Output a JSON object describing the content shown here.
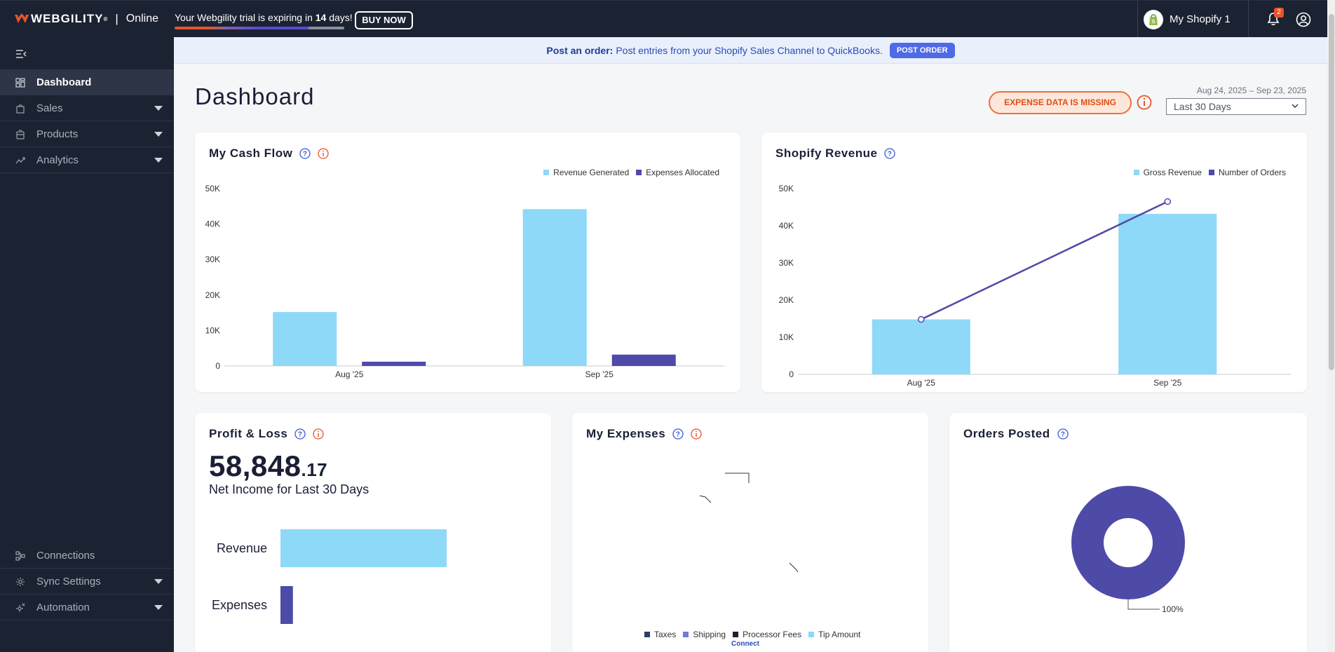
{
  "topbar": {
    "brand": "WEBGILITY",
    "brand_mark": "®",
    "separator": "|",
    "brand_sub": "Online",
    "trial_prefix": "Your Webgility trial is expiring in ",
    "trial_days": "14",
    "trial_suffix": " days!",
    "buy_label": "BUY NOW",
    "store_name": "My Shopify 1",
    "notification_count": "2"
  },
  "sidebar": {
    "items": [
      {
        "label": "Dashboard",
        "icon": "dashboard-icon",
        "active": true
      },
      {
        "label": "Sales",
        "icon": "bag-icon"
      },
      {
        "label": "Products",
        "icon": "box-icon"
      },
      {
        "label": "Analytics",
        "icon": "trend-icon"
      }
    ],
    "bottom_items": [
      {
        "label": "Connections",
        "icon": "connections-icon"
      },
      {
        "label": "Sync Settings",
        "icon": "gear-icon"
      },
      {
        "label": "Automation",
        "icon": "automation-icon"
      }
    ]
  },
  "banner": {
    "lead": "Post an order:",
    "text": "Post entries from your Shopify Sales Channel to QuickBooks.",
    "button": "POST ORDER"
  },
  "header": {
    "title": "Dashboard",
    "expense_missing": "EXPENSE DATA IS MISSING",
    "date_range": "Aug 24, 2025 – Sep 23, 2025",
    "period": "Last 30 Days"
  },
  "cards": {
    "cash_flow": {
      "title": "My Cash Flow"
    },
    "shopify_revenue": {
      "title": "Shopify Revenue"
    },
    "profit_loss": {
      "title": "Profit & Loss",
      "value_int": "58,848",
      "value_dec": ".17",
      "subtitle": "Net Income for Last 30 Days"
    },
    "expenses": {
      "title": "My Expenses",
      "legend": [
        "Taxes",
        "Shipping",
        "Processor Fees",
        "Tip Amount"
      ],
      "connect": "Connect"
    },
    "orders_posted": {
      "title": "Orders Posted",
      "percent_label": "100%"
    }
  },
  "colors": {
    "light_blue": "#8ed8f8",
    "indigo": "#4e4aa8",
    "orange": "#e8542a",
    "sidebar": "#1b2232"
  },
  "chart_data": [
    {
      "type": "bar",
      "title": "My Cash Flow",
      "categories": [
        "Aug '25",
        "Sep '25"
      ],
      "series": [
        {
          "name": "Revenue Generated",
          "values": [
            15200,
            44200
          ],
          "color": "#8ed8f8"
        },
        {
          "name": "Expenses Allocated",
          "values": [
            1200,
            3200
          ],
          "color": "#4e4aa8"
        }
      ],
      "ylim": [
        0,
        50000
      ],
      "yticks": [
        "0",
        "10K",
        "20K",
        "30K",
        "40K",
        "50K"
      ],
      "legend": "top-right"
    },
    {
      "type": "bar",
      "title": "Shopify Revenue",
      "categories": [
        "Aug '25",
        "Sep '25"
      ],
      "series": [
        {
          "name": "Gross Revenue",
          "values": [
            14800,
            43200
          ],
          "color": "#8ed8f8"
        },
        {
          "name": "Number of Orders",
          "values": [
            14800,
            46500
          ],
          "type": "line",
          "color": "#4e4aa8"
        }
      ],
      "ylim": [
        0,
        50000
      ],
      "yticks": [
        "0",
        "10K",
        "20K",
        "30K",
        "40K",
        "50K"
      ],
      "legend": "top-right"
    },
    {
      "type": "bar",
      "title": "Profit & Loss",
      "categories": [
        "Revenue",
        "Expenses"
      ],
      "values": [
        100,
        7.5
      ],
      "orientation": "horizontal"
    },
    {
      "type": "pie",
      "title": "Orders Posted",
      "slices": [
        {
          "label": "100%",
          "value": 100,
          "color": "#4e4aa8"
        }
      ],
      "donut": true
    }
  ]
}
